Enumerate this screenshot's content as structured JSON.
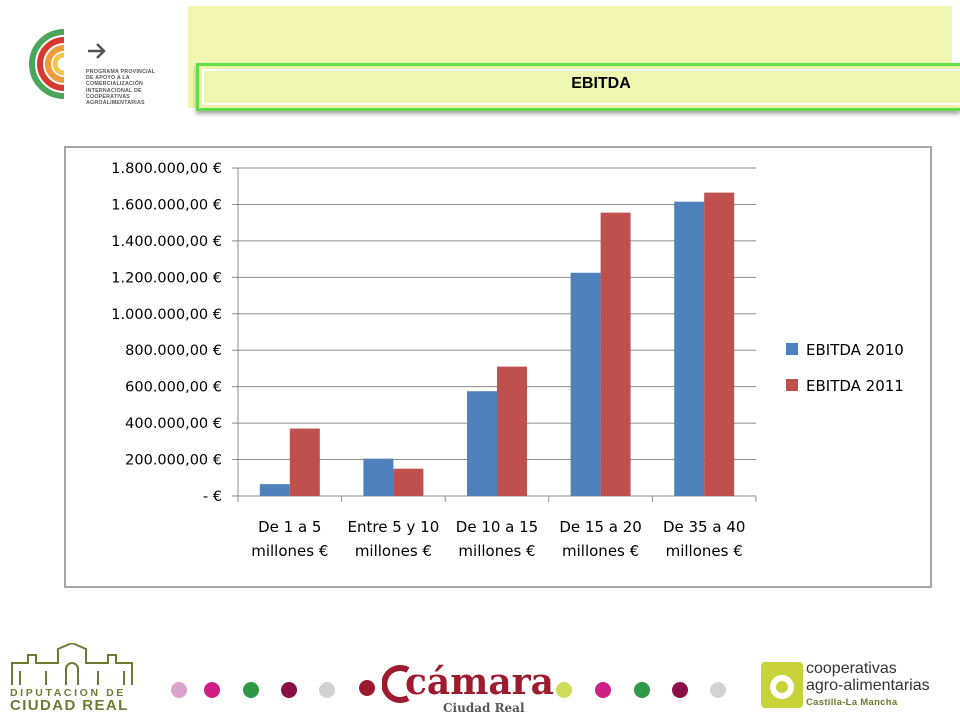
{
  "header": {
    "title": "EBITDA",
    "program_logo_text": [
      "PROGRAMA PROVINCIAL",
      "DE APOYO A LA",
      "COMERCIALIZACIÓN",
      "INTERNACIONAL DE",
      "COOPERATIVAS",
      "AGROALIMENTARIAS"
    ]
  },
  "chart_data": {
    "type": "bar",
    "categories": [
      [
        "De 1 a 5",
        "millones €"
      ],
      [
        "Entre 5 y 10",
        "millones €"
      ],
      [
        "De 10 a 15",
        "millones €"
      ],
      [
        "De 15 a 20",
        "millones €"
      ],
      [
        "De 35 a 40",
        "millones €"
      ]
    ],
    "series": [
      {
        "name": "EBITDA 2010",
        "color": "#4f81bd",
        "values": [
          65000,
          205000,
          575000,
          1225000,
          1615000
        ]
      },
      {
        "name": "EBITDA 2011",
        "color": "#c0504d",
        "values": [
          370000,
          150000,
          710000,
          1555000,
          1665000
        ]
      }
    ],
    "ylim": [
      0,
      1800000
    ],
    "y_ticks": [
      {
        "value": 0,
        "label": "-   €"
      },
      {
        "value": 200000,
        "label": "200.000,00 €"
      },
      {
        "value": 400000,
        "label": "400.000,00 €"
      },
      {
        "value": 600000,
        "label": "600.000,00 €"
      },
      {
        "value": 800000,
        "label": "800.000,00 €"
      },
      {
        "value": 1000000,
        "label": "1.000.000,00 €"
      },
      {
        "value": 1200000,
        "label": "1.200.000,00 €"
      },
      {
        "value": 1400000,
        "label": "1.400.000,00 €"
      },
      {
        "value": 1600000,
        "label": "1.600.000,00 €"
      },
      {
        "value": 1800000,
        "label": "1.800.000,00 €"
      }
    ],
    "grid": true,
    "legend": "right"
  },
  "footer": {
    "diputacion_line1": "DIPUTACION DE",
    "diputacion_line2": "CIUDAD REAL",
    "camara_word": "cámara",
    "camara_sub": "Ciudad Real",
    "coop_line1": "cooperativas",
    "coop_line2": "agro-alimentarias",
    "coop_line3": "Castilla-La Mancha",
    "dot_colors": [
      "#dba3cc",
      "#d01f84",
      "#2e9a48",
      "#8a0f45",
      "#d2d2d2",
      "#9d1b2f",
      "#cfdc5a",
      "#d01f84",
      "#2e9a48",
      "#8a0f45",
      "#d2d2d2"
    ]
  }
}
